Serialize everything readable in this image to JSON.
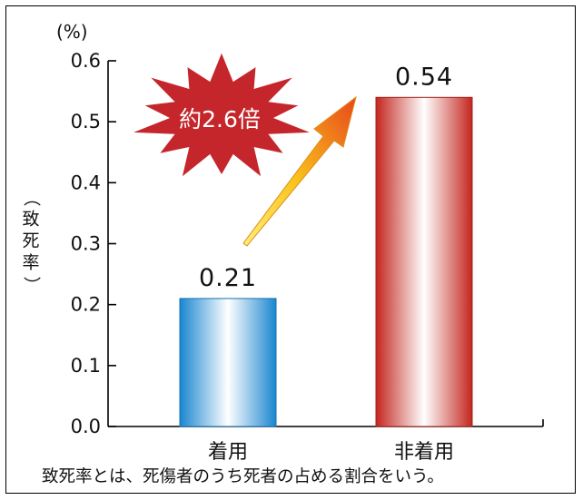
{
  "chart_data": {
    "type": "bar",
    "unit_label": "(%)",
    "ylabel": "（致死率）",
    "ylim": [
      0,
      0.6
    ],
    "yticks": [
      "0.0",
      "0.1",
      "0.2",
      "0.3",
      "0.4",
      "0.5",
      "0.6"
    ],
    "categories": [
      "着用",
      "非着用"
    ],
    "values": [
      0.21,
      0.54
    ],
    "value_labels": [
      "0.21",
      "0.54"
    ],
    "bar_colors": [
      "#1e8fd6",
      "#cc2a22"
    ],
    "annotation": {
      "text": "約2.6倍",
      "burst_color": "#c5262b",
      "arrow_color": "#f7b515"
    },
    "caption": "致死率とは、死傷者のうち死者の占める割合をいう。",
    "grid": false,
    "legend": "none"
  }
}
